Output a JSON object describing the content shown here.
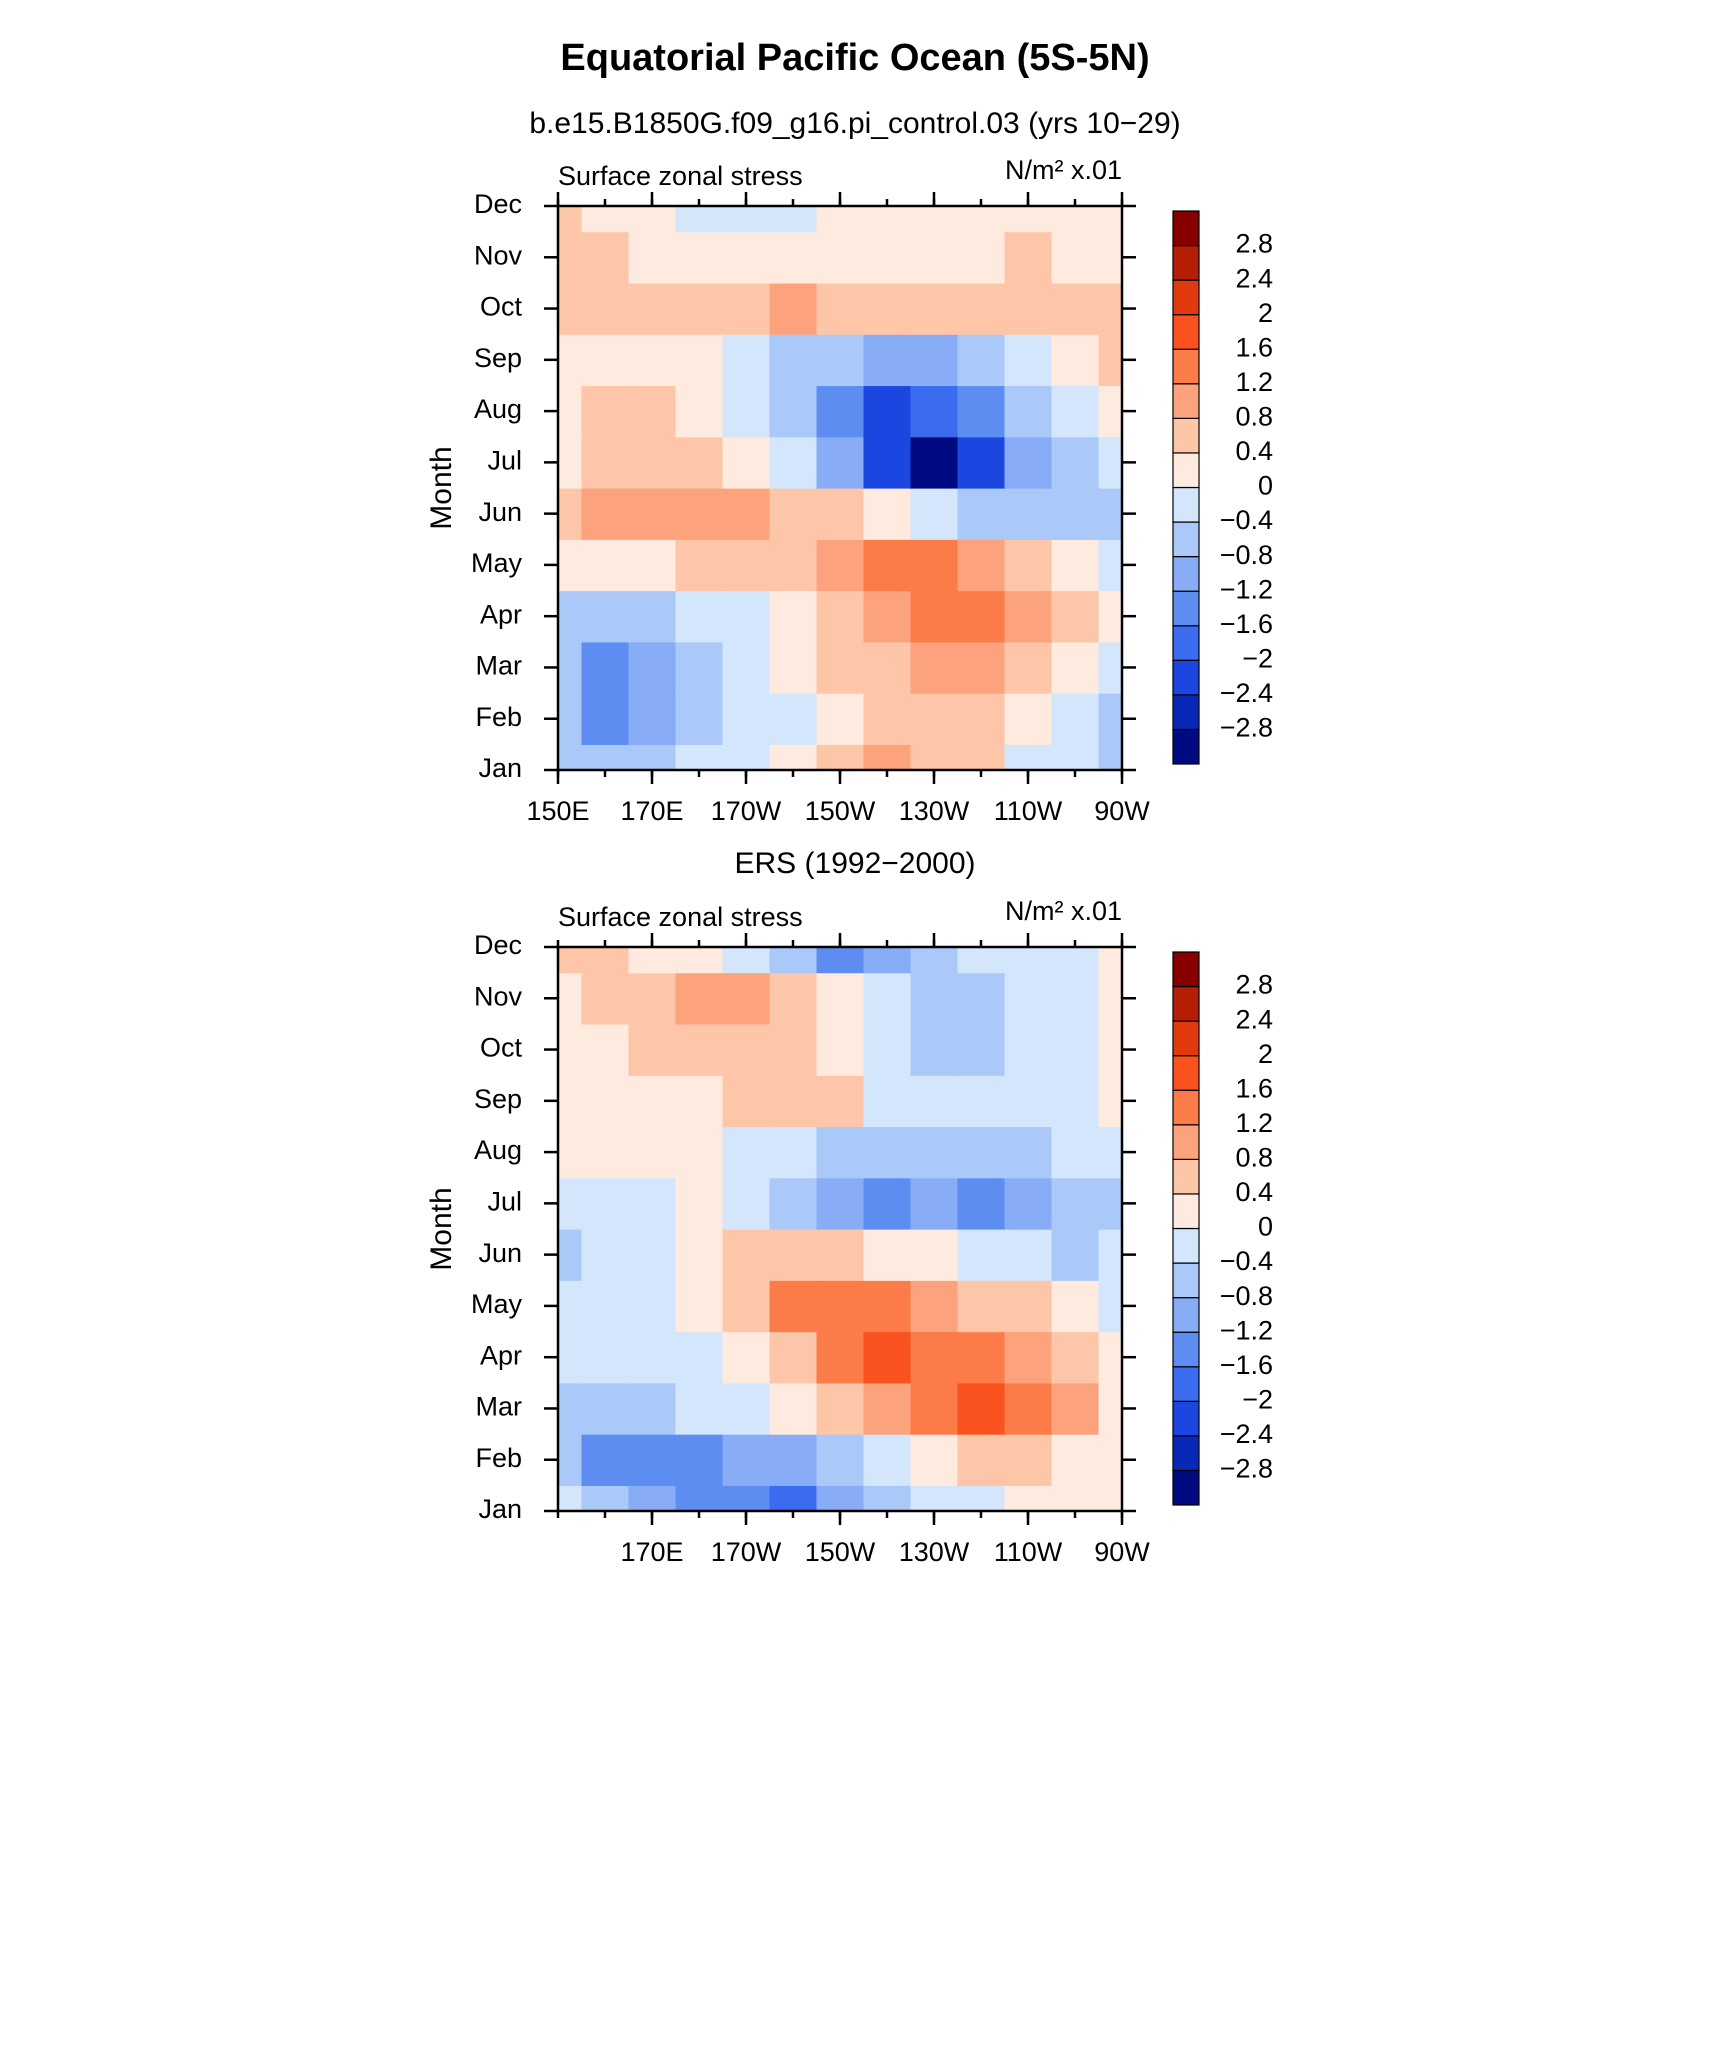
{
  "title": "Equatorial Pacific Ocean (5S-5N)",
  "chart_data": [
    {
      "type": "contour",
      "title": "b.e15.B1850G.f09_g16.pi_control.03 (yrs 10−29)",
      "left_string": "Surface zonal stress",
      "right_string": "N/m² x.01",
      "ylabel": "Month",
      "x": [
        150,
        160,
        170,
        180,
        190,
        200,
        210,
        220,
        230,
        240,
        250,
        260,
        270
      ],
      "y": [
        "Jan",
        "Feb",
        "Mar",
        "Apr",
        "May",
        "Jun",
        "Jul",
        "Aug",
        "Sep",
        "Oct",
        "Nov",
        "Dec"
      ],
      "xlim": [
        150,
        270
      ],
      "xticks": [
        {
          "value": 150,
          "label": "150E"
        },
        {
          "value": 170,
          "label": "170E"
        },
        {
          "value": 190,
          "label": "170W"
        },
        {
          "value": 210,
          "label": "150W"
        },
        {
          "value": 230,
          "label": "130W"
        },
        {
          "value": 250,
          "label": "110W"
        },
        {
          "value": 270,
          "label": "90W"
        }
      ],
      "z": [
        [
          -0.6,
          -0.7,
          -0.6,
          -0.3,
          -0.2,
          0.2,
          0.5,
          0.9,
          0.6,
          0.4,
          -0.2,
          -0.3,
          -0.6
        ],
        [
          -0.8,
          -1.3,
          -1.0,
          -0.6,
          -0.3,
          -0.1,
          0.3,
          0.5,
          0.6,
          0.5,
          0.2,
          -0.2,
          -0.5
        ],
        [
          -0.7,
          -1.3,
          -0.9,
          -0.5,
          -0.3,
          0.1,
          0.4,
          0.6,
          0.8,
          0.8,
          0.7,
          0.3,
          -0.1
        ],
        [
          -0.5,
          -0.6,
          -0.5,
          -0.3,
          -0.1,
          0.2,
          0.6,
          0.9,
          1.3,
          1.3,
          1.0,
          0.5,
          0.1
        ],
        [
          0.2,
          0.2,
          0.3,
          0.4,
          0.5,
          0.7,
          1.0,
          1.3,
          1.4,
          1.0,
          0.6,
          0.2,
          -0.3
        ],
        [
          0.6,
          0.8,
          0.9,
          0.9,
          0.8,
          0.7,
          0.5,
          0.2,
          -0.4,
          -0.8,
          -0.6,
          -0.5,
          -0.5
        ],
        [
          0.3,
          0.7,
          0.6,
          0.5,
          0.2,
          -0.2,
          -1.2,
          -2.2,
          -2.9,
          -2.2,
          -1.0,
          -0.5,
          -0.2
        ],
        [
          0.2,
          0.5,
          0.4,
          0.2,
          -0.1,
          -0.7,
          -1.5,
          -2.1,
          -1.9,
          -1.3,
          -0.6,
          -0.3,
          0.2
        ],
        [
          0.3,
          0.3,
          0.2,
          0.1,
          -0.2,
          -0.6,
          -0.8,
          -1.0,
          -0.9,
          -0.6,
          -0.2,
          0.2,
          0.6
        ],
        [
          0.6,
          0.5,
          0.5,
          0.6,
          0.7,
          0.8,
          0.6,
          0.5,
          0.6,
          0.7,
          0.5,
          0.4,
          0.6
        ],
        [
          0.5,
          0.4,
          0.3,
          0.3,
          0.2,
          0.2,
          0.2,
          0.2,
          0.2,
          0.3,
          0.5,
          0.3,
          0.3
        ],
        [
          0.4,
          0.3,
          0.2,
          -0.1,
          -0.2,
          -0.1,
          0.1,
          0.2,
          0.3,
          0.3,
          0.3,
          0.2,
          0.1
        ]
      ],
      "levels": [
        {
          "value": -2.8,
          "label": "−2.8"
        },
        {
          "value": -2.4,
          "label": "−2.4"
        },
        {
          "value": -2,
          "label": "−2"
        },
        {
          "value": -1.6,
          "label": "−1.6"
        },
        {
          "value": -1.2,
          "label": "−1.2"
        },
        {
          "value": -0.8,
          "label": "−0.8"
        },
        {
          "value": -0.4,
          "label": "−0.4"
        },
        0,
        0.4,
        0.8,
        1.2,
        1.6,
        2,
        2.4,
        2.8
      ],
      "colors": [
        "#000a80",
        "#0a28b8",
        "#1c46e0",
        "#3b6cf0",
        "#5e8df1",
        "#88acf5",
        "#aac8f8",
        "#d4e6fb",
        "#feeade",
        "#fdc6a9",
        "#fca27c",
        "#fb7b49",
        "#f9521e",
        "#e03a0d",
        "#b51f05",
        "#870000"
      ]
    },
    {
      "type": "contour",
      "title": "ERS (1992−2000)",
      "left_string": "Surface zonal stress",
      "right_string": "N/m² x.01",
      "ylabel": "Month",
      "x": [
        150,
        160,
        170,
        180,
        190,
        200,
        210,
        220,
        230,
        240,
        250,
        260,
        270
      ],
      "y": [
        "Jan",
        "Feb",
        "Mar",
        "Apr",
        "May",
        "Jun",
        "Jul",
        "Aug",
        "Sep",
        "Oct",
        "Nov",
        "Dec"
      ],
      "xlim": [
        150,
        270
      ],
      "xticks": [
        {
          "value": 170,
          "label": "170E"
        },
        {
          "value": 190,
          "label": "170W"
        },
        {
          "value": 210,
          "label": "150W"
        },
        {
          "value": 230,
          "label": "130W"
        },
        {
          "value": 250,
          "label": "110W"
        },
        {
          "value": 270,
          "label": "90W"
        }
      ],
      "z": [
        [
          -0.3,
          -0.5,
          -1.0,
          -1.3,
          -1.4,
          -1.7,
          -1.2,
          -0.8,
          -0.4,
          -0.1,
          0.1,
          0.2,
          0.1
        ],
        [
          -0.8,
          -1.3,
          -1.4,
          -1.3,
          -1.0,
          -1.0,
          -0.6,
          -0.2,
          0.2,
          0.5,
          0.5,
          0.3,
          0.3
        ],
        [
          -0.5,
          -0.6,
          -0.7,
          -0.3,
          -0.1,
          0.2,
          0.6,
          1.0,
          1.3,
          1.7,
          1.5,
          0.8,
          0.3
        ],
        [
          -0.1,
          -0.2,
          -0.3,
          -0.1,
          0.2,
          0.6,
          1.3,
          1.7,
          1.5,
          1.2,
          0.9,
          0.6,
          0.2
        ],
        [
          -0.1,
          -0.2,
          -0.1,
          0.1,
          0.6,
          1.2,
          1.4,
          1.2,
          0.9,
          0.5,
          0.4,
          0.2,
          -0.1
        ],
        [
          -0.5,
          -0.3,
          -0.2,
          0.2,
          0.5,
          0.6,
          0.4,
          0.2,
          0.0,
          -0.2,
          -0.3,
          -0.5,
          -0.3
        ],
        [
          -0.2,
          -0.1,
          -0.1,
          0.1,
          -0.2,
          -0.5,
          -1.0,
          -1.3,
          -0.9,
          -1.3,
          -1.1,
          -0.8,
          -0.5
        ],
        [
          0.2,
          0.2,
          0.3,
          0.2,
          -0.1,
          -0.4,
          -0.5,
          -0.6,
          -0.5,
          -0.6,
          -0.7,
          -0.4,
          -0.2
        ],
        [
          0.2,
          0.2,
          0.3,
          0.3,
          0.5,
          0.5,
          0.4,
          -0.1,
          -0.2,
          -0.2,
          -0.1,
          -0.1,
          0.2
        ],
        [
          0.2,
          0.3,
          0.4,
          0.4,
          0.5,
          0.6,
          0.3,
          -0.2,
          -0.6,
          -0.6,
          -0.4,
          -0.2,
          0.1
        ],
        [
          0.3,
          0.4,
          0.5,
          0.8,
          0.9,
          0.6,
          0.2,
          -0.3,
          -0.6,
          -0.5,
          -0.4,
          -0.1,
          0.2
        ],
        [
          0.4,
          0.5,
          0.3,
          0.2,
          -0.2,
          -0.7,
          -1.3,
          -1.0,
          -0.5,
          -0.4,
          -0.2,
          -0.1,
          0.2
        ]
      ],
      "levels": [
        {
          "value": -2.8,
          "label": "−2.8"
        },
        {
          "value": -2.4,
          "label": "−2.4"
        },
        {
          "value": -2,
          "label": "−2"
        },
        {
          "value": -1.6,
          "label": "−1.6"
        },
        {
          "value": -1.2,
          "label": "−1.2"
        },
        {
          "value": -0.8,
          "label": "−0.8"
        },
        {
          "value": -0.4,
          "label": "−0.4"
        },
        0,
        0.4,
        0.8,
        1.2,
        1.6,
        2,
        2.4,
        2.8
      ],
      "colors": [
        "#000a80",
        "#0a28b8",
        "#1c46e0",
        "#3b6cf0",
        "#5e8df1",
        "#88acf5",
        "#aac8f8",
        "#d4e6fb",
        "#feeade",
        "#fdc6a9",
        "#fca27c",
        "#fb7b49",
        "#f9521e",
        "#e03a0d",
        "#b51f05",
        "#870000"
      ]
    }
  ]
}
